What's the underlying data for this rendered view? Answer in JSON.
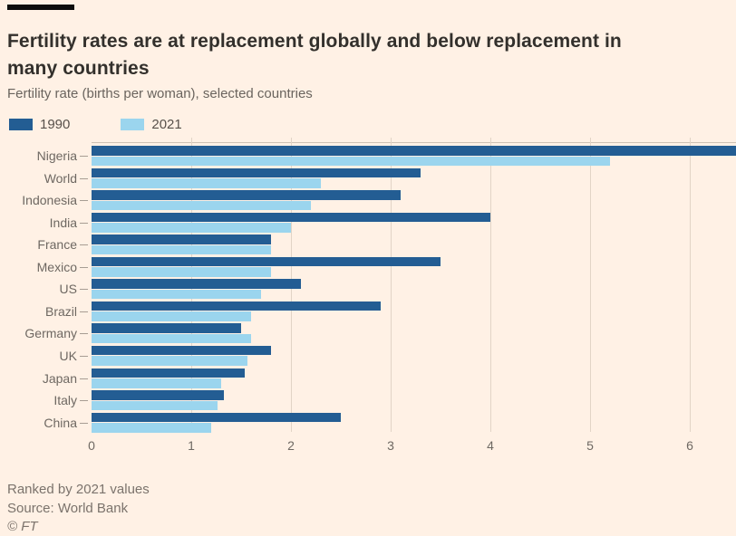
{
  "title": "Fertility rates are at replacement globally and below replacement in many countries",
  "subtitle": "Fertility rate (births per woman), selected countries",
  "legend": {
    "items": [
      {
        "label": "1990",
        "color": "#235d93"
      },
      {
        "label": "2021",
        "color": "#9bd5ee"
      }
    ],
    "position": "top-left"
  },
  "footer": {
    "note": "Ranked by 2021 values",
    "source": "Source: World Bank",
    "copyright": "© FT"
  },
  "colors": {
    "background": "#fff1e5",
    "bar_1990": "#235d93",
    "bar_2021": "#9bd5ee",
    "title_text": "#33302c",
    "muted_text": "#6e6862",
    "gridline": "#e2d4c6"
  },
  "chart_data": {
    "type": "bar",
    "orientation": "horizontal",
    "title": "Fertility rates are at replacement globally and below replacement in many countries",
    "subtitle": "Fertility rate (births per woman), selected countries",
    "xlabel": "",
    "ylabel": "",
    "categories": [
      "Nigeria",
      "World",
      "Indonesia",
      "India",
      "France",
      "Mexico",
      "US",
      "Brazil",
      "Germany",
      "UK",
      "Japan",
      "Italy",
      "China"
    ],
    "series": [
      {
        "name": "1990",
        "color": "#235d93",
        "values": [
          6.6,
          3.3,
          3.1,
          4.0,
          1.8,
          3.5,
          2.1,
          2.9,
          1.5,
          1.8,
          1.54,
          1.33,
          2.5
        ]
      },
      {
        "name": "2021",
        "color": "#9bd5ee",
        "values": [
          5.2,
          2.3,
          2.2,
          2.0,
          1.8,
          1.8,
          1.7,
          1.6,
          1.6,
          1.56,
          1.3,
          1.26,
          1.2
        ]
      }
    ],
    "x_ticks": [
      0,
      1,
      2,
      3,
      4,
      5,
      6
    ],
    "xlim": [
      0,
      6.46
    ],
    "grid": true,
    "legend_position": "top-left",
    "sort_order": "ranked by 2021 values, descending",
    "notes": "Nigeria 1990 bar is clipped at the right edge of the plot"
  }
}
